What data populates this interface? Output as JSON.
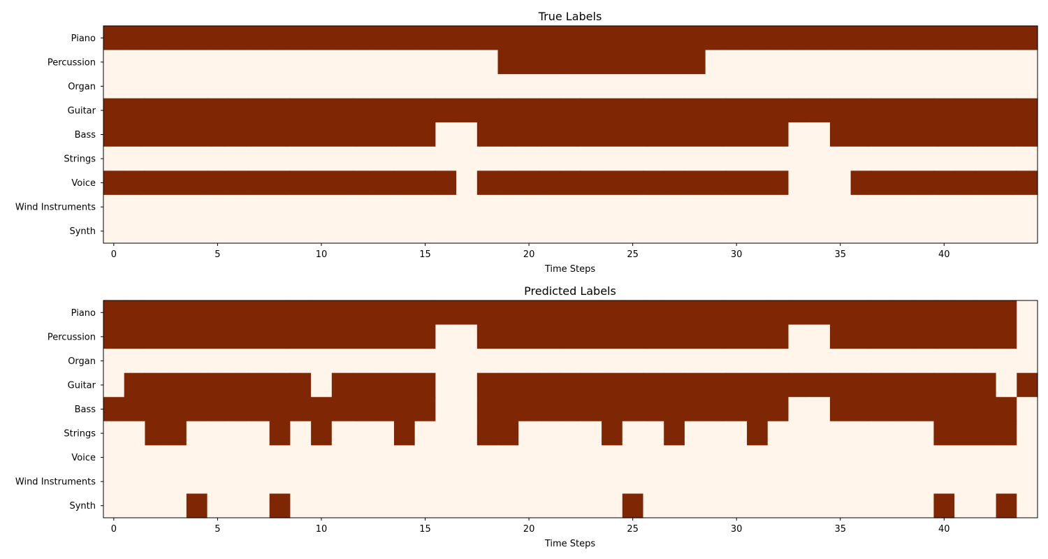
{
  "colors": {
    "on": "#7f2704",
    "off": "#fff5eb",
    "axis": "#000000"
  },
  "chart_data": [
    {
      "type": "heatmap",
      "title": "True Labels",
      "xlabel": "Time Steps",
      "ylabel": "",
      "xlim": [
        -0.5,
        44.5
      ],
      "x_ticks": [
        0,
        5,
        10,
        15,
        20,
        25,
        30,
        35,
        40
      ],
      "x_tick_labels": [
        "0",
        "5",
        "10",
        "15",
        "20",
        "25",
        "30",
        "35",
        "40"
      ],
      "categories": [
        "Piano",
        "Percussion",
        "Organ",
        "Guitar",
        "Bass",
        "Strings",
        "Voice",
        "Wind Instruments",
        "Synth"
      ],
      "grid": false,
      "values": [
        "111111111111111111111111111111111111111111111",
        "000000000000000000011111111110000000000000000",
        "000000000000000000000000000000000000000000000",
        "111111111111111111111111111111111111111111111",
        "111111111111111100111111111111111001111111111",
        "000000000000000000000000000000000000000000000",
        "111111111111111110111111111111111000111111111",
        "000000000000000000000000000000000000000000000",
        "000000000000000000000000000000000000000000000"
      ]
    },
    {
      "type": "heatmap",
      "title": "Predicted Labels",
      "xlabel": "Time Steps",
      "ylabel": "",
      "xlim": [
        -0.5,
        44.5
      ],
      "x_ticks": [
        0,
        5,
        10,
        15,
        20,
        25,
        30,
        35,
        40
      ],
      "x_tick_labels": [
        "0",
        "5",
        "10",
        "15",
        "20",
        "25",
        "30",
        "35",
        "40"
      ],
      "categories": [
        "Piano",
        "Percussion",
        "Organ",
        "Guitar",
        "Bass",
        "Strings",
        "Voice",
        "Wind Instruments",
        "Synth"
      ],
      "grid": false,
      "values": [
        "111111111111111111111111111111111111111111110",
        "111111111111111100111111111111111001111111110",
        "000000000000000000000000000000000000000000000",
        "011111111101111100111111111111111111111111101",
        "111111111111111100111111111111111001111111110",
        "001100001010001000110000100100010000000011110",
        "000000000000000000000000000000000000000000000",
        "000000000000000000000000000000000000000000000",
        "000010001000000000000000010000000000000010010"
      ]
    }
  ]
}
